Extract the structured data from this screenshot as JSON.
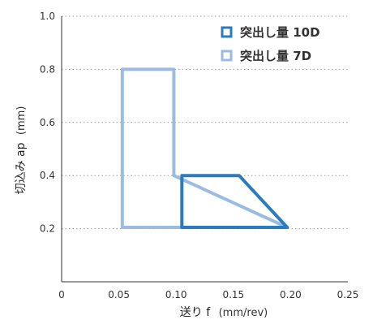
{
  "chart_data": {
    "type": "area",
    "xlabel": "送り f",
    "xunit": "(mm/rev)",
    "ylabel": "切込み ap",
    "yunit": "(mm)",
    "xlim": [
      0,
      0.25
    ],
    "ylim": [
      0,
      1.0
    ],
    "x_ticks": [
      "0",
      "0.05",
      "0.10",
      "0.15",
      "0.20",
      "0.25"
    ],
    "y_ticks": [
      "0.2",
      "0.4",
      "0.6",
      "0.8",
      "1.0"
    ],
    "grid": "horizontal-dotted",
    "legend_position": "top-right",
    "series": [
      {
        "name": "突出し量 10D",
        "color": "#2b7bbf",
        "points": [
          [
            0.105,
            0.4
          ],
          [
            0.155,
            0.4
          ],
          [
            0.197,
            0.205
          ],
          [
            0.105,
            0.205
          ]
        ]
      },
      {
        "name": "突出し量 7D",
        "color": "#9bbce0",
        "points": [
          [
            0.053,
            0.8
          ],
          [
            0.098,
            0.8
          ],
          [
            0.098,
            0.4
          ],
          [
            0.197,
            0.205
          ],
          [
            0.053,
            0.205
          ]
        ]
      }
    ]
  }
}
